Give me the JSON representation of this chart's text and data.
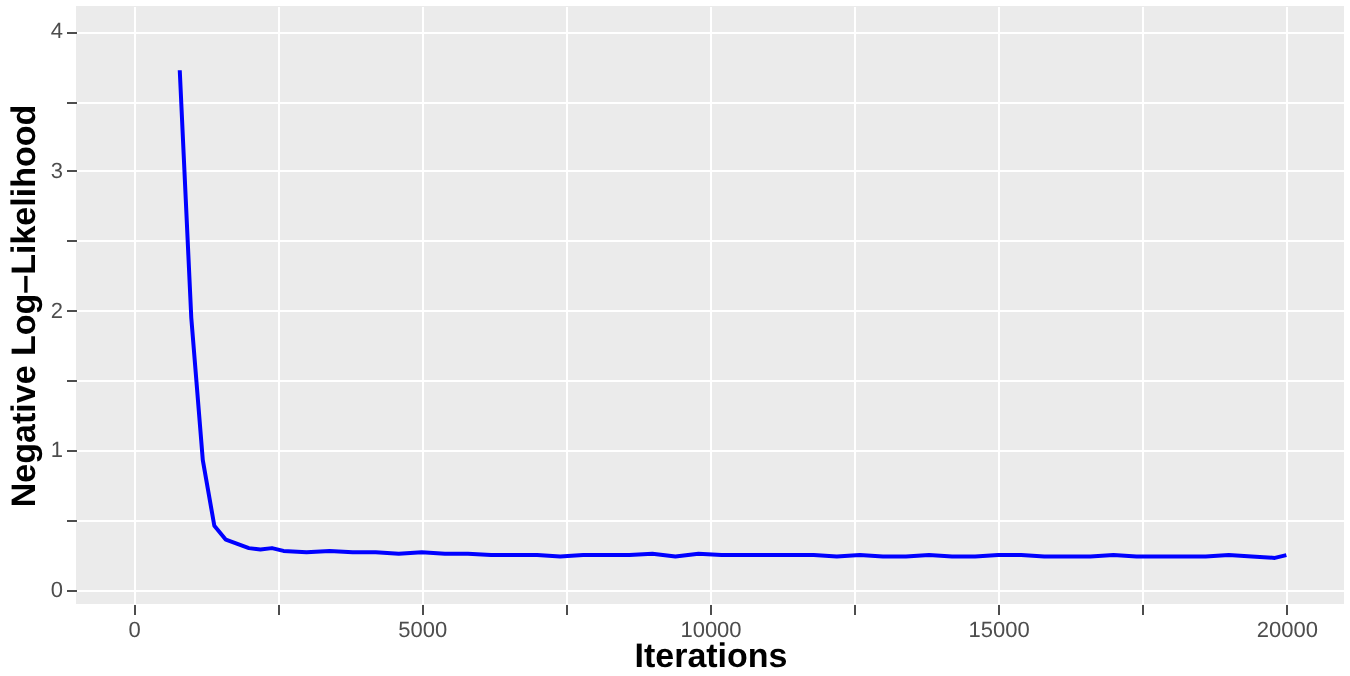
{
  "chart_data": {
    "type": "line",
    "xlabel": "Iterations",
    "ylabel": "Negative Log–Likelihood",
    "x": [
      800,
      1000,
      1200,
      1400,
      1600,
      1800,
      2000,
      2200,
      2400,
      2600,
      3000,
      3400,
      3800,
      4200,
      4600,
      5000,
      5400,
      5800,
      6200,
      6600,
      7000,
      7400,
      7800,
      8200,
      8600,
      9000,
      9400,
      9800,
      10200,
      10600,
      11000,
      11400,
      11800,
      12200,
      12600,
      13000,
      13400,
      13800,
      14200,
      14600,
      15000,
      15400,
      15800,
      16200,
      16600,
      17000,
      17400,
      17800,
      18200,
      18600,
      19000,
      19400,
      19800,
      20000
    ],
    "series": [
      {
        "color": "#0000ff",
        "values": [
          3.72,
          1.95,
          0.93,
          0.46,
          0.36,
          0.33,
          0.3,
          0.29,
          0.3,
          0.28,
          0.27,
          0.28,
          0.27,
          0.27,
          0.26,
          0.27,
          0.26,
          0.26,
          0.25,
          0.25,
          0.25,
          0.24,
          0.25,
          0.25,
          0.25,
          0.26,
          0.24,
          0.26,
          0.25,
          0.25,
          0.25,
          0.25,
          0.25,
          0.24,
          0.25,
          0.24,
          0.24,
          0.25,
          0.24,
          0.24,
          0.25,
          0.25,
          0.24,
          0.24,
          0.24,
          0.25,
          0.24,
          0.24,
          0.24,
          0.24,
          0.25,
          0.24,
          0.23,
          0.25
        ]
      }
    ],
    "xlim": [
      -1000,
      21000
    ],
    "ylim": [
      -0.1,
      4.18
    ],
    "xticks": [
      0,
      {
        "value": 2500,
        "label": null
      },
      5000,
      {
        "value": 7500,
        "label": null
      },
      10000,
      {
        "value": 12500,
        "label": null
      },
      15000,
      {
        "value": 17500,
        "label": null
      },
      20000
    ],
    "yticks": [
      0,
      {
        "value": 0.5,
        "label": null
      },
      1,
      {
        "value": 1.5,
        "label": null
      },
      2,
      {
        "value": 2.5,
        "label": null
      },
      3,
      {
        "value": 3.5,
        "label": null
      },
      4
    ],
    "grid": true,
    "legend": false,
    "line_style": "solid",
    "marker": "none"
  }
}
